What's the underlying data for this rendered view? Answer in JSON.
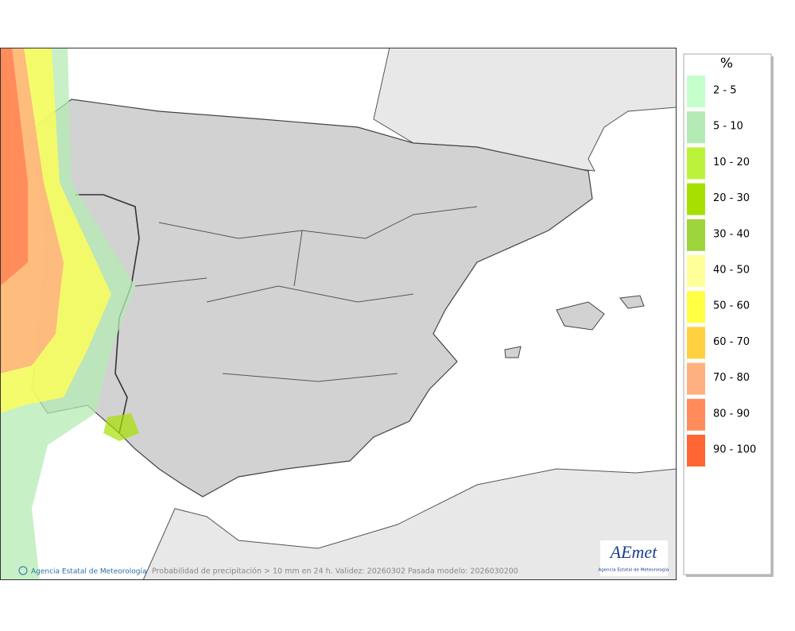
{
  "legend": {
    "title": "%",
    "items": [
      {
        "label": "2 - 5",
        "color": "#c4ffcc"
      },
      {
        "label": "5 - 10",
        "color": "#b4ebb4"
      },
      {
        "label": "10 - 20",
        "color": "#bdf23a"
      },
      {
        "label": "20 - 30",
        "color": "#a6e000"
      },
      {
        "label": "30 - 40",
        "color": "#9ed43c"
      },
      {
        "label": "40 - 50",
        "color": "#ffff99"
      },
      {
        "label": "50 - 60",
        "color": "#ffff44"
      },
      {
        "label": "60 - 70",
        "color": "#ffd040"
      },
      {
        "label": "70 - 80",
        "color": "#ffb080"
      },
      {
        "label": "80 - 90",
        "color": "#ff8c5a"
      },
      {
        "label": "90 - 100",
        "color": "#ff6633"
      }
    ]
  },
  "footer": {
    "credit": "Agencia Estatal de Meteorología",
    "caption": "Probabilidad de precipitación > 10 mm en 24 h. Validez: 20260302 Pasada modelo: 2026030200"
  },
  "logo": {
    "name": "AEmet",
    "subtitle": "Agencia Estatal de Meteorología"
  }
}
